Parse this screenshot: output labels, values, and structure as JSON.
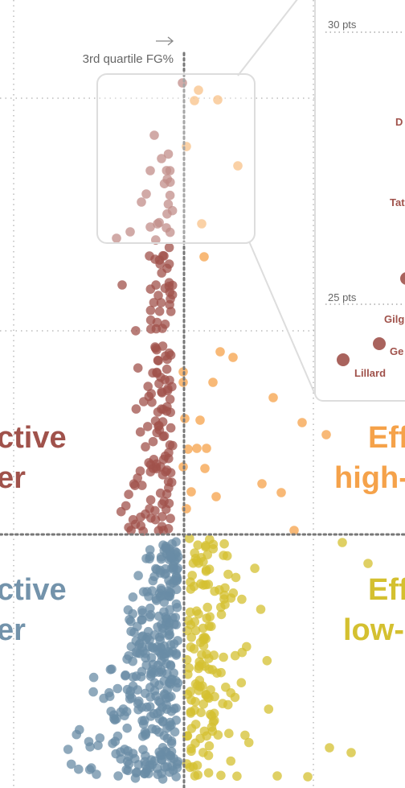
{
  "chart_data": {
    "type": "scatter",
    "title": "",
    "xlabel": "",
    "ylabel": "",
    "annotations": {
      "vertical_line_label": "3rd quartile FG%"
    },
    "quadrants": [
      {
        "text1": "ctive",
        "text2": "er",
        "color": "#a0524b"
      },
      {
        "text1": "Eff",
        "text2": "high-",
        "color": "#f5a24a"
      },
      {
        "text1": "ctive",
        "text2": "er",
        "color": "#7393ab"
      },
      {
        "text1": "Eff",
        "text2": "low-",
        "color": "#d4c030"
      }
    ],
    "colors": {
      "upper_left": "#a0524b",
      "upper_right": "#f5a24a",
      "lower_left": "#6a8ca6",
      "lower_right": "#d4c030",
      "gridline": "#999999",
      "threshold": "#777777"
    },
    "inset": {
      "y_ticks": [
        "30 pts",
        "25 pts"
      ],
      "players": [
        "D",
        "Tat",
        "Gilg",
        "Ge",
        "Lillard"
      ]
    }
  }
}
